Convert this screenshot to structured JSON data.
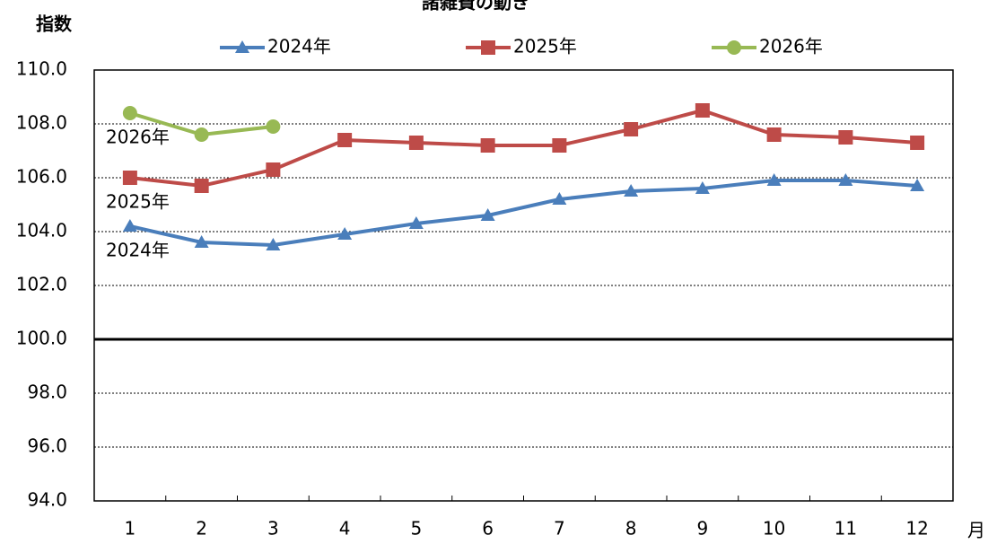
{
  "chart_data": {
    "type": "line",
    "title": "諸雑費の動き",
    "y_label": "指数",
    "x_label": "月",
    "categories": [
      "1",
      "2",
      "3",
      "4",
      "5",
      "6",
      "7",
      "8",
      "9",
      "10",
      "11",
      "12"
    ],
    "series": [
      {
        "name": "2024年",
        "color": "#4a7ebb",
        "marker": "triangle",
        "values": [
          104.2,
          103.6,
          103.5,
          103.9,
          104.3,
          104.6,
          105.2,
          105.5,
          105.6,
          105.9,
          105.9,
          105.7
        ]
      },
      {
        "name": "2025年",
        "color": "#be4b48",
        "marker": "square",
        "values": [
          106.0,
          105.7,
          106.3,
          107.4,
          107.3,
          107.2,
          107.2,
          107.8,
          108.5,
          107.6,
          107.5,
          107.3
        ]
      },
      {
        "name": "2026年",
        "color": "#98b954",
        "marker": "circle",
        "values": [
          108.4,
          107.6,
          107.9,
          null,
          null,
          null,
          null,
          null,
          null,
          null,
          null,
          null
        ]
      }
    ],
    "annotations": [
      "2026年",
      "2025年",
      "2024年"
    ],
    "ylim": [
      94,
      110
    ],
    "yticks": [
      {
        "value": 94,
        "label": "94.0"
      },
      {
        "value": 96,
        "label": "96.0"
      },
      {
        "value": 98,
        "label": "98.0"
      },
      {
        "value": 100,
        "label": "100.0"
      },
      {
        "value": 102,
        "label": "102.0"
      },
      {
        "value": 104,
        "label": "104.0"
      },
      {
        "value": 106,
        "label": "106.0"
      },
      {
        "value": 108,
        "label": "108.0"
      },
      {
        "value": 110,
        "label": "110.0"
      }
    ],
    "baseline": 100,
    "grid": true,
    "legend": "top"
  }
}
